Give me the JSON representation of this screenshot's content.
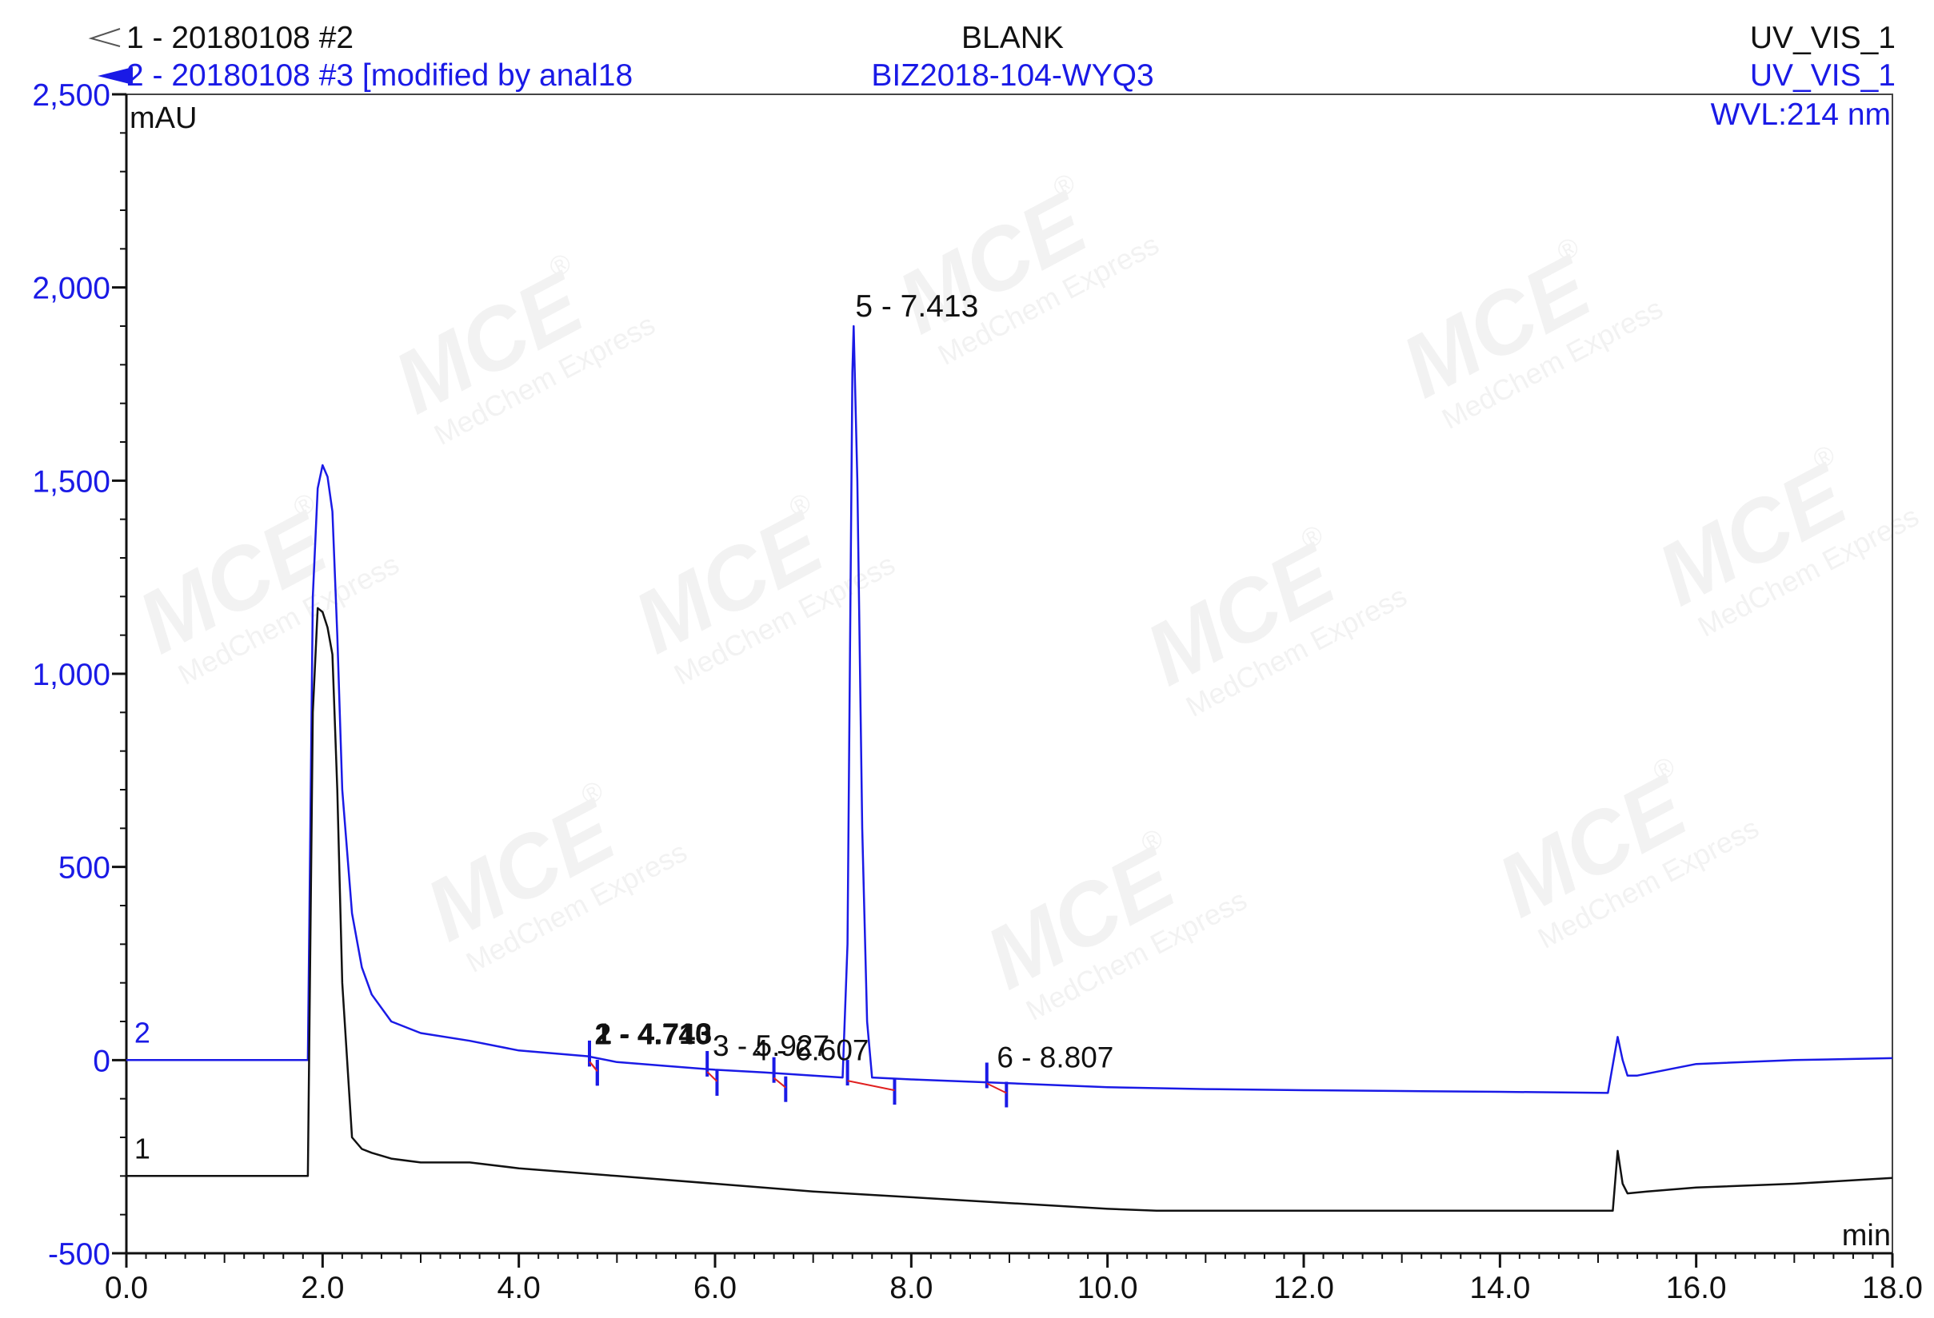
{
  "header": {
    "trace1_title": "1 - 20180108 #2",
    "trace2_title": "2 - 20180108 #3 [modified by anal18",
    "sample1_name": "BLANK",
    "sample2_name": "BIZ2018-104-WYQ3",
    "channel1": "UV_VIS_1",
    "channel2": "UV_VIS_1",
    "wavelength": "WVL:214 nm"
  },
  "watermark": {
    "brand": "MCE",
    "tagline": "MedChem Express",
    "registered": "®"
  },
  "colors": {
    "trace2": "#1a1ae6",
    "trace1": "#111111",
    "baseline_marks": "#e02020",
    "axis": "#111111",
    "frame": "#444444"
  },
  "chart_data": {
    "type": "line",
    "xlabel": "min",
    "ylabel": "mAU",
    "xlim": [
      0.0,
      18.0
    ],
    "ylim": [
      -500,
      2500
    ],
    "xticks": [
      0.0,
      2.0,
      4.0,
      6.0,
      8.0,
      10.0,
      12.0,
      14.0,
      16.0,
      18.0
    ],
    "xtick_labels": [
      "0.0",
      "2.0",
      "4.0",
      "6.0",
      "8.0",
      "10.0",
      "12.0",
      "14.0",
      "16.0",
      "18.0"
    ],
    "yticks": [
      -500,
      0,
      500,
      1000,
      1500,
      2000,
      2500
    ],
    "ytick_labels": [
      "-500",
      "0",
      "500",
      "1,000",
      "1,500",
      "2,000",
      "2,500"
    ],
    "series": [
      {
        "name": "2",
        "x": [
          0.0,
          1.85,
          1.9,
          1.95,
          2.0,
          2.05,
          2.1,
          2.15,
          2.2,
          2.3,
          2.4,
          2.5,
          2.7,
          3.0,
          3.5,
          4.0,
          4.7,
          5.0,
          5.5,
          6.0,
          6.5,
          7.0,
          7.3,
          7.35,
          7.4,
          7.413,
          7.45,
          7.5,
          7.55,
          7.6,
          8.0,
          9.0,
          10.0,
          11.0,
          12.0,
          13.0,
          14.0,
          15.1,
          15.2,
          15.25,
          15.3,
          15.4,
          16.0,
          17.0,
          18.0
        ],
        "y": [
          0,
          0,
          1200,
          1480,
          1540,
          1510,
          1420,
          1100,
          700,
          380,
          240,
          170,
          100,
          70,
          50,
          25,
          10,
          -5,
          -15,
          -25,
          -32,
          -40,
          -45,
          300,
          1780,
          1900,
          1500,
          600,
          100,
          -45,
          -50,
          -60,
          -70,
          -75,
          -78,
          -80,
          -82,
          -85,
          60,
          0,
          -40,
          -40,
          -10,
          0,
          5
        ]
      },
      {
        "name": "1",
        "x": [
          0.0,
          1.85,
          1.9,
          1.95,
          2.0,
          2.05,
          2.1,
          2.15,
          2.2,
          2.3,
          2.4,
          2.5,
          2.7,
          3.0,
          3.5,
          4.0,
          5.0,
          6.0,
          7.0,
          8.0,
          9.0,
          10.0,
          10.5,
          12.0,
          14.0,
          15.15,
          15.2,
          15.25,
          15.3,
          15.5,
          16.0,
          17.0,
          18.0
        ],
        "y": [
          -300,
          -300,
          900,
          1170,
          1160,
          1120,
          1050,
          700,
          200,
          -200,
          -230,
          -240,
          -255,
          -265,
          -265,
          -280,
          -300,
          -320,
          -340,
          -355,
          -370,
          -385,
          -390,
          -390,
          -390,
          -390,
          -235,
          -320,
          -345,
          -340,
          -330,
          -320,
          -305
        ]
      }
    ],
    "trace_labels": [
      {
        "series": "2",
        "text": "2",
        "x": 0.08,
        "y": 45
      },
      {
        "series": "1",
        "text": "1",
        "x": 0.08,
        "y": -255
      }
    ],
    "peaks": [
      {
        "label": "1 - 4.713",
        "rt": 4.713,
        "y": 5,
        "start": 4.72,
        "end": 4.8
      },
      {
        "label": "2 - 4.740",
        "rt": 4.74,
        "y": 4,
        "start": 4.72,
        "end": 4.8
      },
      {
        "label": "3 - 5.927",
        "rt": 5.927,
        "y": -22,
        "start": 5.92,
        "end": 6.02
      },
      {
        "label": "4 - 6.607",
        "rt": 6.607,
        "y": -38,
        "start": 6.6,
        "end": 6.72
      },
      {
        "label": "5 - 7.413",
        "rt": 7.413,
        "y": 1900,
        "start": 7.35,
        "end": 7.83
      },
      {
        "label": "6 - 8.807",
        "rt": 8.807,
        "y": -52,
        "start": 8.77,
        "end": 8.97
      }
    ]
  }
}
